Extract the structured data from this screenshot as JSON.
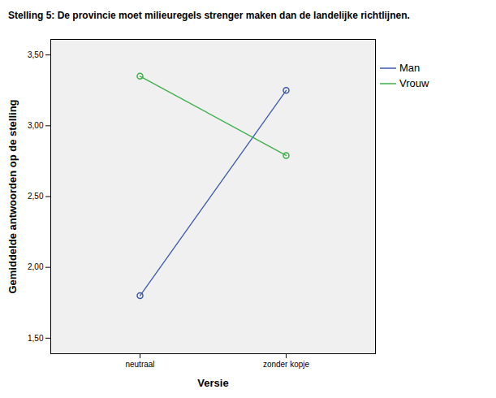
{
  "chart_data": {
    "type": "line",
    "title": "Stelling 5: De provincie moet milieuregels strenger maken dan de landelijke richtlijnen.",
    "x_label": "Versie",
    "y_label": "Gemiddelde antwoorden op de stelling",
    "categories": [
      "neutraal",
      "zonder kopje"
    ],
    "series": [
      {
        "name": "Man",
        "color": "#3e58ac",
        "values": [
          1.8,
          3.25
        ]
      },
      {
        "name": "Vrouw",
        "color": "#3dae4a",
        "values": [
          3.35,
          2.79
        ]
      }
    ],
    "ylim": [
      1.39,
      3.61
    ],
    "yticks": [
      {
        "value": 1.5,
        "label": "1,50"
      },
      {
        "value": 2.0,
        "label": "2,00"
      },
      {
        "value": 2.5,
        "label": "2,50"
      },
      {
        "value": 3.0,
        "label": "3,00"
      },
      {
        "value": 3.5,
        "label": "3,50"
      }
    ],
    "marker": "circle",
    "line_style": "solid",
    "legend": "right",
    "grid": false
  }
}
